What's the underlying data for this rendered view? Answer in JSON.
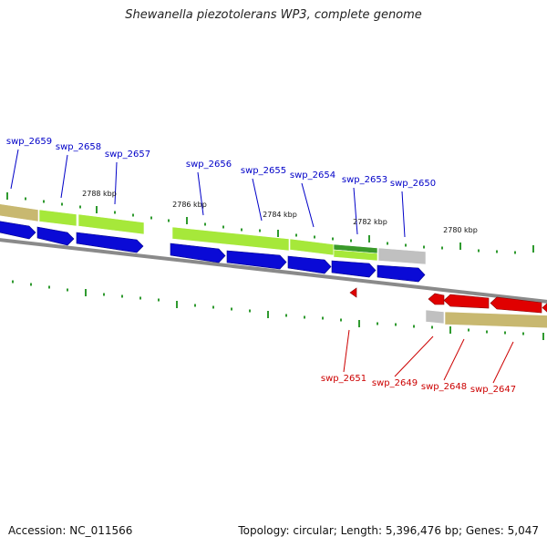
{
  "title": "Shewanella piezotolerans WP3, complete genome",
  "footer": {
    "accession": "Accession: NC_011566",
    "summary": "Topology: circular; Length: 5,396,476 bp; Genes: 5,047"
  },
  "colors": {
    "forward_cds": "#0a0ad6",
    "reverse_cds": "#e00000",
    "forward_label": "#0000c8",
    "reverse_label": "#cc0000",
    "cog_green": "#a6e83a",
    "cog_darkgreen": "#3a9a2a",
    "cog_olive": "#c8b870",
    "cog_gray": "#c0c0c0",
    "backbone": "#888888",
    "ticks": "#2f9a2f"
  },
  "kbp_marks": [
    "2788 kbp",
    "2786 kbp",
    "2784 kbp",
    "2782 kbp",
    "2780 kbp"
  ],
  "forward_genes": [
    "swp_2659",
    "swp_2658",
    "swp_2657",
    "swp_2656",
    "swp_2655",
    "swp_2654",
    "swp_2653",
    "swp_2650"
  ],
  "reverse_genes": [
    "swp_2651",
    "swp_2649",
    "swp_2648",
    "swp_2647"
  ]
}
